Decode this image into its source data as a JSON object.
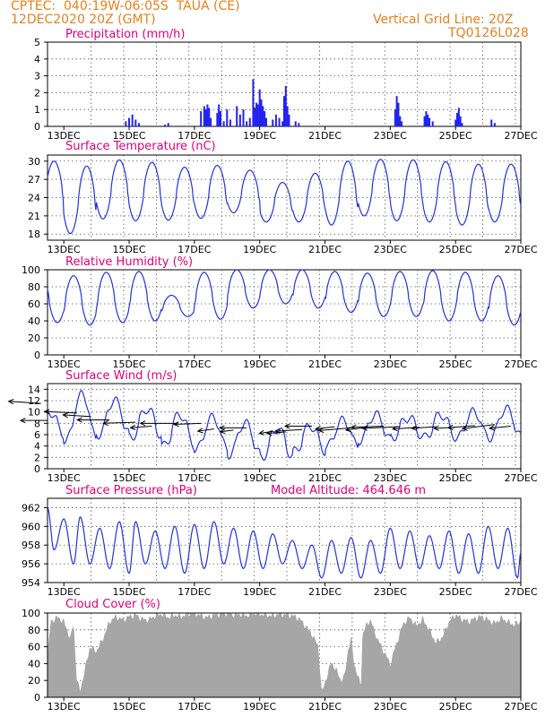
{
  "header": {
    "left_line1": "CPTEC:  040:19W-06:05S  TAUA (CE)",
    "left_line2": "12DEC2020 20Z (GMT)",
    "right_line1": "Vertical Grid Line: 20Z",
    "right_line2": "TQ0126L028"
  },
  "colors": {
    "header": "#e8801a",
    "title": "#e0007a",
    "series": "#2233dd",
    "precip_bar": "#2222ee",
    "cloud_fill": "#a6a6a6",
    "vector": "#000000"
  },
  "x_axis": {
    "start": "2020-12-12T12Z",
    "end": "2020-12-27T00Z",
    "tick_labels": [
      "13DEC",
      "15DEC",
      "17DEC",
      "19DEC",
      "21DEC",
      "23DEC",
      "25DEC",
      "27DEC"
    ],
    "tick_days": [
      13,
      15,
      17,
      19,
      21,
      23,
      25,
      27
    ]
  },
  "chart_data": [
    {
      "type": "bar",
      "name": "precipitation",
      "title": "Precipitation (mm/h)",
      "ylim": [
        0,
        5
      ],
      "yticks": [
        0,
        1,
        2,
        3,
        4,
        5
      ],
      "points": [
        [
          14.9,
          0.3
        ],
        [
          15.0,
          0.5
        ],
        [
          15.1,
          0.7
        ],
        [
          15.2,
          0.4
        ],
        [
          15.3,
          0.2
        ],
        [
          16.1,
          0.1
        ],
        [
          16.2,
          0.2
        ],
        [
          17.2,
          0.9
        ],
        [
          17.3,
          1.2
        ],
        [
          17.35,
          1.0
        ],
        [
          17.4,
          1.3
        ],
        [
          17.45,
          1.1
        ],
        [
          17.5,
          0.5
        ],
        [
          17.7,
          0.8
        ],
        [
          17.75,
          1.3
        ],
        [
          17.8,
          0.9
        ],
        [
          17.9,
          0.3
        ],
        [
          18.0,
          1.0
        ],
        [
          18.1,
          0.4
        ],
        [
          18.3,
          1.2
        ],
        [
          18.4,
          0.7
        ],
        [
          18.5,
          1.0
        ],
        [
          18.6,
          0.3
        ],
        [
          18.7,
          0.5
        ],
        [
          18.8,
          2.8
        ],
        [
          18.85,
          1.1
        ],
        [
          18.9,
          1.4
        ],
        [
          18.95,
          1.3
        ],
        [
          19.0,
          2.2
        ],
        [
          19.05,
          1.6
        ],
        [
          19.1,
          1.2
        ],
        [
          19.15,
          0.9
        ],
        [
          19.2,
          0.5
        ],
        [
          19.4,
          0.4
        ],
        [
          19.5,
          0.7
        ],
        [
          19.6,
          0.5
        ],
        [
          19.7,
          0.3
        ],
        [
          19.75,
          1.8
        ],
        [
          19.8,
          2.4
        ],
        [
          19.85,
          1.2
        ],
        [
          19.9,
          0.7
        ],
        [
          20.1,
          0.3
        ],
        [
          20.2,
          0.2
        ],
        [
          23.15,
          1.0
        ],
        [
          23.2,
          1.8
        ],
        [
          23.25,
          1.4
        ],
        [
          23.3,
          0.6
        ],
        [
          23.35,
          0.3
        ],
        [
          24.05,
          0.6
        ],
        [
          24.1,
          0.9
        ],
        [
          24.15,
          0.7
        ],
        [
          24.2,
          0.5
        ],
        [
          24.3,
          0.3
        ],
        [
          25.0,
          0.4
        ],
        [
          25.05,
          0.8
        ],
        [
          25.1,
          1.1
        ],
        [
          25.15,
          0.6
        ],
        [
          25.2,
          0.2
        ],
        [
          26.1,
          0.4
        ],
        [
          26.2,
          0.2
        ]
      ]
    },
    {
      "type": "line",
      "name": "surface_temperature",
      "title": "Surface Temperature (nC)",
      "ylim": [
        17,
        31
      ],
      "yticks": [
        18,
        21,
        24,
        27,
        30
      ],
      "daily_cycle": [
        [
          13,
          18.1,
          29.2
        ],
        [
          14,
          20.5,
          30.2
        ],
        [
          15,
          20.2,
          29.8
        ],
        [
          16,
          20.3,
          29.0
        ],
        [
          17,
          20.6,
          29.3
        ],
        [
          18,
          21.5,
          28.5
        ],
        [
          19,
          20.0,
          26.5
        ],
        [
          20,
          20.0,
          28.0
        ],
        [
          21,
          19.5,
          30.0
        ],
        [
          22,
          21.0,
          30.3
        ],
        [
          23,
          20.2,
          30.2
        ],
        [
          24,
          20.0,
          29.9
        ],
        [
          25,
          19.5,
          29.5
        ],
        [
          26,
          20.0,
          29.5
        ],
        [
          27,
          20.5,
          30.0
        ]
      ]
    },
    {
      "type": "line",
      "name": "relative_humidity",
      "title": "Relative Humidity (%)",
      "ylim": [
        0,
        100
      ],
      "yticks": [
        0,
        20,
        40,
        60,
        80,
        100
      ],
      "daily_cycle": [
        [
          13,
          35,
          93
        ],
        [
          14,
          38,
          97
        ],
        [
          15,
          40,
          98
        ],
        [
          16,
          45,
          70
        ],
        [
          17,
          42,
          97
        ],
        [
          18,
          55,
          100
        ],
        [
          19,
          60,
          100
        ],
        [
          20,
          55,
          100
        ],
        [
          21,
          50,
          98
        ],
        [
          22,
          45,
          96
        ],
        [
          23,
          45,
          98
        ],
        [
          24,
          40,
          99
        ],
        [
          25,
          40,
          97
        ],
        [
          26,
          35,
          93
        ],
        [
          27,
          38,
          92
        ]
      ]
    },
    {
      "type": "line",
      "name": "surface_wind",
      "title": "Surface Wind (m/s)",
      "ylim": [
        0,
        15
      ],
      "yticks": [
        0,
        2,
        4,
        6,
        8,
        10,
        12,
        14
      ],
      "daily_cycle": [
        [
          13,
          5.0,
          13.0
        ],
        [
          14,
          6.0,
          12.0
        ],
        [
          15,
          5.5,
          10.5
        ],
        [
          16,
          4.0,
          9.5
        ],
        [
          17,
          3.5,
          9.0
        ],
        [
          18,
          2.5,
          8.0
        ],
        [
          19,
          2.0,
          7.0
        ],
        [
          20,
          3.0,
          7.5
        ],
        [
          21,
          4.0,
          8.5
        ],
        [
          22,
          5.0,
          9.5
        ],
        [
          23,
          5.5,
          9.0
        ],
        [
          24,
          5.5,
          9.5
        ],
        [
          25,
          5.5,
          10.0
        ],
        [
          26,
          5.5,
          10.5
        ],
        [
          27,
          6.0,
          10.0
        ]
      ],
      "vectors": [
        [
          12.3,
          11.5,
          -1.2,
          0.4
        ],
        [
          12.5,
          8.5,
          -1.0,
          0.0
        ],
        [
          13.4,
          9.8,
          -1.2,
          0.3
        ],
        [
          13.8,
          9.2,
          -1.0,
          0.3
        ],
        [
          14.4,
          8.6,
          -1.2,
          0.0
        ],
        [
          15.2,
          8.2,
          -1.2,
          -0.2
        ],
        [
          15.7,
          7.5,
          -0.8,
          -0.3
        ],
        [
          16.5,
          8.0,
          -1.4,
          0.0
        ],
        [
          17.2,
          8.0,
          -1.0,
          -0.2
        ],
        [
          17.6,
          7.0,
          -0.6,
          -0.4
        ],
        [
          18.2,
          6.8,
          -0.5,
          -0.3
        ],
        [
          18.6,
          7.2,
          -1.0,
          0.0
        ],
        [
          19.4,
          6.6,
          -0.5,
          -0.4
        ],
        [
          19.8,
          6.5,
          -0.7,
          -0.3
        ],
        [
          20.3,
          6.9,
          -1.0,
          -0.3
        ],
        [
          20.6,
          7.5,
          -1.0,
          0.0
        ],
        [
          21.3,
          7.4,
          -0.7,
          -0.4
        ],
        [
          21.8,
          7.2,
          -1.2,
          -0.5
        ],
        [
          22.3,
          7.3,
          -0.8,
          -0.5
        ],
        [
          22.8,
          7.5,
          -1.2,
          -0.2
        ],
        [
          23.3,
          7.4,
          -1.4,
          -0.3
        ],
        [
          23.9,
          7.3,
          -1.0,
          -0.3
        ],
        [
          24.4,
          7.4,
          -0.9,
          -0.3
        ],
        [
          25.0,
          7.3,
          -0.8,
          -0.2
        ],
        [
          25.6,
          7.6,
          -1.0,
          -0.4
        ],
        [
          26.2,
          7.8,
          -1.2,
          -0.8
        ],
        [
          26.7,
          7.5,
          -0.8,
          -0.4
        ]
      ]
    },
    {
      "type": "line",
      "name": "surface_pressure",
      "title": "Surface Pressure (hPa)",
      "annotation": "Model Altitude: 464.646 m",
      "ylim": [
        954,
        963
      ],
      "yticks": [
        954,
        956,
        958,
        960,
        962
      ],
      "semidiurnal": [
        [
          12.5,
          962.0
        ],
        [
          12.7,
          957.5
        ],
        [
          13.0,
          960.8
        ],
        [
          13.3,
          956.0
        ],
        [
          13.5,
          961.0
        ],
        [
          13.8,
          956.0
        ],
        [
          14.1,
          959.8
        ],
        [
          14.4,
          955.5
        ],
        [
          14.7,
          960.5
        ],
        [
          15.0,
          955.0
        ],
        [
          15.2,
          960.5
        ],
        [
          15.5,
          956.0
        ],
        [
          15.8,
          959.5
        ],
        [
          16.1,
          955.5
        ],
        [
          16.4,
          960.0
        ],
        [
          16.7,
          955.0
        ],
        [
          17.0,
          960.2
        ],
        [
          17.3,
          955.5
        ],
        [
          17.6,
          960.5
        ],
        [
          17.9,
          956.0
        ],
        [
          18.2,
          959.8
        ],
        [
          18.5,
          955.5
        ],
        [
          18.8,
          959.5
        ],
        [
          19.1,
          955.5
        ],
        [
          19.4,
          959.2
        ],
        [
          19.7,
          956.0
        ],
        [
          20.0,
          958.5
        ],
        [
          20.3,
          955.5
        ],
        [
          20.6,
          958.0
        ],
        [
          20.9,
          954.5
        ],
        [
          21.2,
          958.5
        ],
        [
          21.5,
          955.0
        ],
        [
          21.8,
          958.8
        ],
        [
          22.1,
          954.5
        ],
        [
          22.4,
          958.5
        ],
        [
          22.7,
          955.0
        ],
        [
          23.0,
          959.8
        ],
        [
          23.3,
          955.5
        ],
        [
          23.6,
          959.5
        ],
        [
          23.9,
          955.5
        ],
        [
          24.2,
          959.0
        ],
        [
          24.5,
          955.5
        ],
        [
          24.8,
          959.5
        ],
        [
          25.1,
          955.0
        ],
        [
          25.4,
          959.2
        ],
        [
          25.7,
          955.0
        ],
        [
          26.0,
          960.0
        ],
        [
          26.3,
          955.5
        ],
        [
          26.6,
          959.8
        ],
        [
          26.9,
          954.5
        ],
        [
          27.0,
          957.2
        ]
      ]
    },
    {
      "type": "area",
      "name": "cloud_cover",
      "title": "Cloud Cover (%)",
      "ylim": [
        0,
        100
      ],
      "yticks": [
        0,
        20,
        40,
        60,
        80,
        100
      ],
      "points": [
        [
          12.5,
          50
        ],
        [
          12.6,
          90
        ],
        [
          12.8,
          95
        ],
        [
          13.0,
          90
        ],
        [
          13.2,
          70
        ],
        [
          13.3,
          88
        ],
        [
          13.4,
          20
        ],
        [
          13.5,
          8
        ],
        [
          13.6,
          25
        ],
        [
          13.8,
          60
        ],
        [
          14.0,
          55
        ],
        [
          14.2,
          70
        ],
        [
          14.4,
          90
        ],
        [
          14.6,
          96
        ],
        [
          14.8,
          92
        ],
        [
          15.0,
          96
        ],
        [
          15.2,
          98
        ],
        [
          15.4,
          93
        ],
        [
          15.6,
          92
        ],
        [
          15.8,
          97
        ],
        [
          16.0,
          99
        ],
        [
          16.2,
          95
        ],
        [
          16.4,
          98
        ],
        [
          16.6,
          96
        ],
        [
          16.8,
          99
        ],
        [
          17.0,
          100
        ],
        [
          17.2,
          97
        ],
        [
          17.4,
          95
        ],
        [
          17.6,
          98
        ],
        [
          17.8,
          99
        ],
        [
          18.0,
          100
        ],
        [
          18.2,
          98
        ],
        [
          18.4,
          99
        ],
        [
          18.6,
          97
        ],
        [
          18.8,
          100
        ],
        [
          19.0,
          99
        ],
        [
          19.2,
          98
        ],
        [
          19.4,
          97
        ],
        [
          19.6,
          99
        ],
        [
          19.8,
          98
        ],
        [
          20.0,
          97
        ],
        [
          20.2,
          94
        ],
        [
          20.4,
          85
        ],
        [
          20.6,
          75
        ],
        [
          20.8,
          60
        ],
        [
          20.9,
          5
        ],
        [
          21.0,
          18
        ],
        [
          21.1,
          30
        ],
        [
          21.2,
          42
        ],
        [
          21.3,
          35
        ],
        [
          21.4,
          28
        ],
        [
          21.5,
          20
        ],
        [
          21.6,
          25
        ],
        [
          21.7,
          55
        ],
        [
          21.8,
          70
        ],
        [
          21.9,
          40
        ],
        [
          22.0,
          25
        ],
        [
          22.1,
          15
        ],
        [
          22.15,
          75
        ],
        [
          22.3,
          88
        ],
        [
          22.4,
          92
        ],
        [
          22.5,
          80
        ],
        [
          22.6,
          70
        ],
        [
          22.8,
          55
        ],
        [
          23.0,
          40
        ],
        [
          23.2,
          65
        ],
        [
          23.4,
          88
        ],
        [
          23.6,
          95
        ],
        [
          23.8,
          85
        ],
        [
          24.0,
          93
        ],
        [
          24.2,
          80
        ],
        [
          24.4,
          65
        ],
        [
          24.6,
          72
        ],
        [
          24.8,
          90
        ],
        [
          25.0,
          98
        ],
        [
          25.2,
          93
        ],
        [
          25.4,
          90
        ],
        [
          25.6,
          94
        ],
        [
          25.8,
          96
        ],
        [
          26.0,
          92
        ],
        [
          26.2,
          88
        ],
        [
          26.4,
          94
        ],
        [
          26.6,
          90
        ],
        [
          26.8,
          86
        ],
        [
          27.0,
          90
        ]
      ]
    }
  ]
}
